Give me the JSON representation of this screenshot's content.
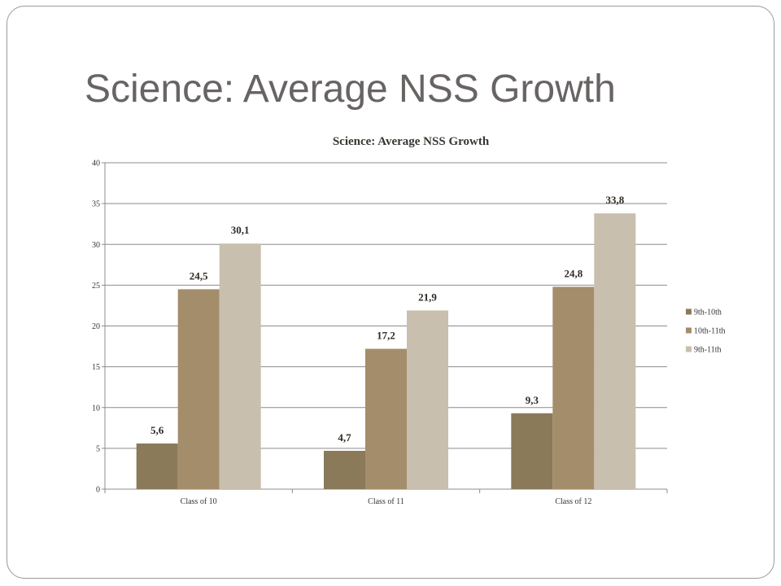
{
  "slide": {
    "title": "Science:  Average NSS Growth"
  },
  "chart_data": {
    "type": "bar",
    "title": "Science: Average NSS Growth",
    "xlabel": "",
    "ylabel": "",
    "ylim": [
      0,
      40
    ],
    "yticks": [
      0,
      5,
      10,
      15,
      20,
      25,
      30,
      35,
      40
    ],
    "grid": true,
    "legend_position": "right",
    "categories": [
      "Class of 10",
      "Class of 11",
      "Class of 12"
    ],
    "series": [
      {
        "name": "9th-10th",
        "color": "#8a7a5a",
        "values": [
          5.6,
          4.7,
          9.3
        ],
        "labels": [
          "5,6",
          "4,7",
          "9,3"
        ]
      },
      {
        "name": "10th-11th",
        "color": "#a48d6b",
        "values": [
          24.5,
          17.2,
          24.8
        ],
        "labels": [
          "24,5",
          "17,2",
          "24,8"
        ]
      },
      {
        "name": "9th-11th",
        "color": "#c9bfae",
        "values": [
          30.1,
          21.9,
          33.8
        ],
        "labels": [
          "30,1",
          "21,9",
          "33,8"
        ]
      }
    ]
  }
}
